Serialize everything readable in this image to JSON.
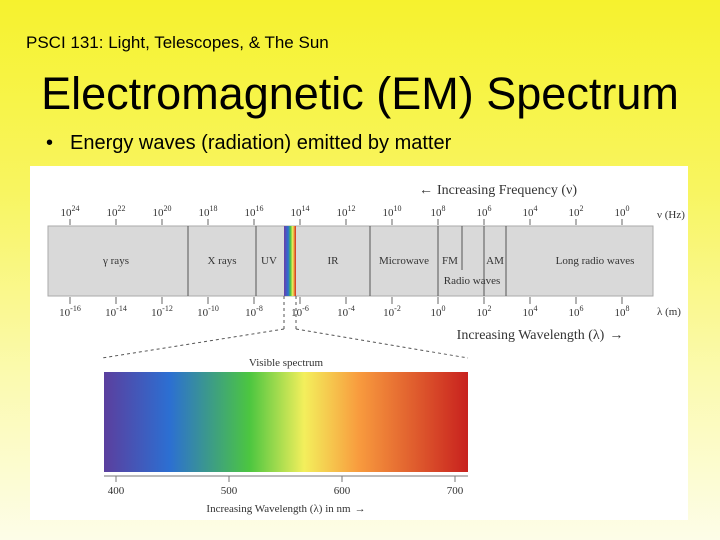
{
  "slide": {
    "course_title": "PSCI 131: Light, Telescopes, & The Sun",
    "heading": "Electromagnetic (EM) Spectrum",
    "bullets": [
      "Energy waves (radiation) emitted by matter"
    ]
  },
  "diagram": {
    "frequency_axis": {
      "label": "Increasing Frequency (ν)",
      "arrow": "←",
      "unit_label": "ν (Hz)",
      "ticks": [
        "10^24",
        "10^22",
        "10^20",
        "10^18",
        "10^16",
        "10^14",
        "10^12",
        "10^10",
        "10^8",
        "10^6",
        "10^4",
        "10^2",
        "10^0"
      ]
    },
    "wavelength_axis": {
      "label": "Increasing Wavelength (λ)",
      "arrow": "→",
      "unit_label": "λ (m)",
      "ticks": [
        "10^-16",
        "10^-14",
        "10^-12",
        "10^-10",
        "10^-8",
        "10^-6",
        "10^-4",
        "10^-2",
        "10^0",
        "10^2",
        "10^4",
        "10^6",
        "10^8"
      ]
    },
    "bands": [
      "γ rays",
      "X rays",
      "UV",
      "IR",
      "Microwave",
      "FM",
      "AM",
      "Radio waves",
      "Long radio waves"
    ],
    "visible": {
      "label": "Visible spectrum",
      "ticks": [
        "400",
        "500",
        "600",
        "700"
      ],
      "axis_label": "Increasing Wavelength (λ) in nm"
    },
    "colors": {
      "band_fill": "#d9d9d9",
      "panel_bg": "#ffffff",
      "violet": "#5b3f9e",
      "blue": "#2c6fd2",
      "green": "#4cc640",
      "yellow": "#f3ef5c",
      "orange": "#f89b3e",
      "red": "#c8211e"
    }
  }
}
